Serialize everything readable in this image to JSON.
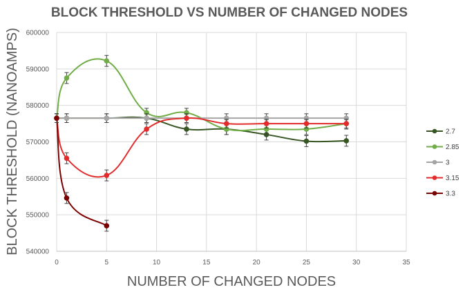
{
  "chart_data": {
    "type": "line",
    "title": "BLOCK THRESHOLD VS NUMBER OF CHANGED NODES",
    "xlabel": "NUMBER OF CHANGED NODES",
    "ylabel": "BLOCK THRESHOLD (NANOAMPS)",
    "xlim": [
      0,
      35
    ],
    "ylim": [
      540000,
      600000
    ],
    "xticks": [
      0,
      5,
      10,
      15,
      20,
      25,
      30,
      35
    ],
    "yticks": [
      540000,
      550000,
      560000,
      570000,
      580000,
      590000,
      600000
    ],
    "grid": true,
    "legend_position": "right",
    "series": [
      {
        "name": "2.7",
        "color": "#375623",
        "x": [
          0,
          1,
          5,
          9,
          13,
          17,
          21,
          25,
          29
        ],
        "y": [
          576500,
          576500,
          576500,
          576500,
          573500,
          573500,
          572000,
          570200,
          570300
        ],
        "err": [
          1200,
          1200,
          1200,
          1200,
          1500,
          1500,
          1500,
          1500,
          1500
        ]
      },
      {
        "name": "2.85",
        "color": "#70ad47",
        "x": [
          0,
          1,
          5,
          9,
          13,
          17,
          21,
          25,
          29
        ],
        "y": [
          576500,
          587500,
          592200,
          578000,
          578000,
          573500,
          573500,
          573500,
          575000
        ],
        "err": [
          1200,
          1500,
          1500,
          1200,
          1200,
          1500,
          1500,
          1500,
          1500
        ]
      },
      {
        "name": "3",
        "color": "#a5a5a5",
        "x": [
          0,
          1,
          5,
          9,
          13,
          17,
          21,
          25,
          29
        ],
        "y": [
          576500,
          576500,
          576500,
          576500,
          576500,
          576500,
          576500,
          576500,
          576500
        ],
        "err": [
          1200,
          1200,
          1200,
          1200,
          1200,
          1200,
          1200,
          1200,
          1200
        ]
      },
      {
        "name": "3.15",
        "color": "#e32b2b",
        "x": [
          0,
          1,
          5,
          9,
          13,
          17,
          21,
          25,
          29
        ],
        "y": [
          576500,
          565500,
          560800,
          573500,
          576500,
          575000,
          575000,
          575000,
          575000
        ],
        "err": [
          1200,
          1500,
          1500,
          1500,
          1200,
          1200,
          1200,
          1200,
          1200
        ]
      },
      {
        "name": "3.3",
        "color": "#7b0000",
        "x": [
          0,
          1,
          5
        ],
        "y": [
          576500,
          554600,
          547000
        ],
        "err": [
          1200,
          1500,
          1500
        ]
      }
    ]
  }
}
